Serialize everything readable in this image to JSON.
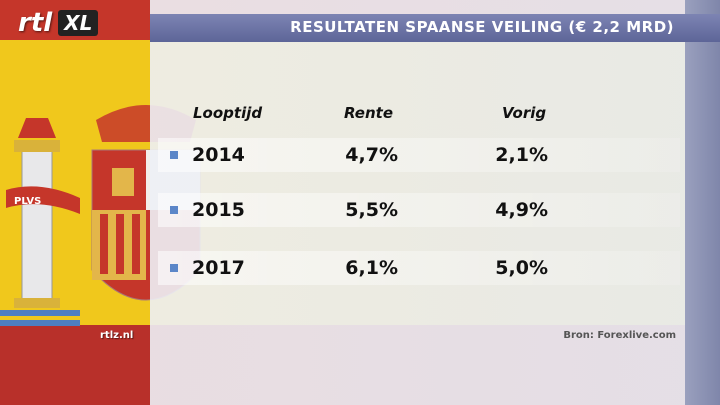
{
  "logo": {
    "brand": "rtl",
    "channel": "XL"
  },
  "title": "RESULTATEN SPAANSE VEILING (€ 2,2 MRD)",
  "coat_of_arms_motto": "PLVS",
  "table": {
    "headers": [
      "Looptijd",
      "Rente",
      "Vorig"
    ],
    "rows": [
      {
        "year": "2014",
        "rente": "4,7%",
        "vorig": "2,1%"
      },
      {
        "year": "2015",
        "rente": "5,5%",
        "vorig": "4,9%"
      },
      {
        "year": "2017",
        "rente": "6,1%",
        "vorig": "5,0%"
      }
    ]
  },
  "footer": {
    "site": "rtlz.nl",
    "source": "Bron: Forexlive.com"
  },
  "colors": {
    "flag_red": "#c5362a",
    "flag_yellow": "#f0c81c",
    "title_bar": "#6a72a6",
    "bullet": "#5b86c8"
  }
}
